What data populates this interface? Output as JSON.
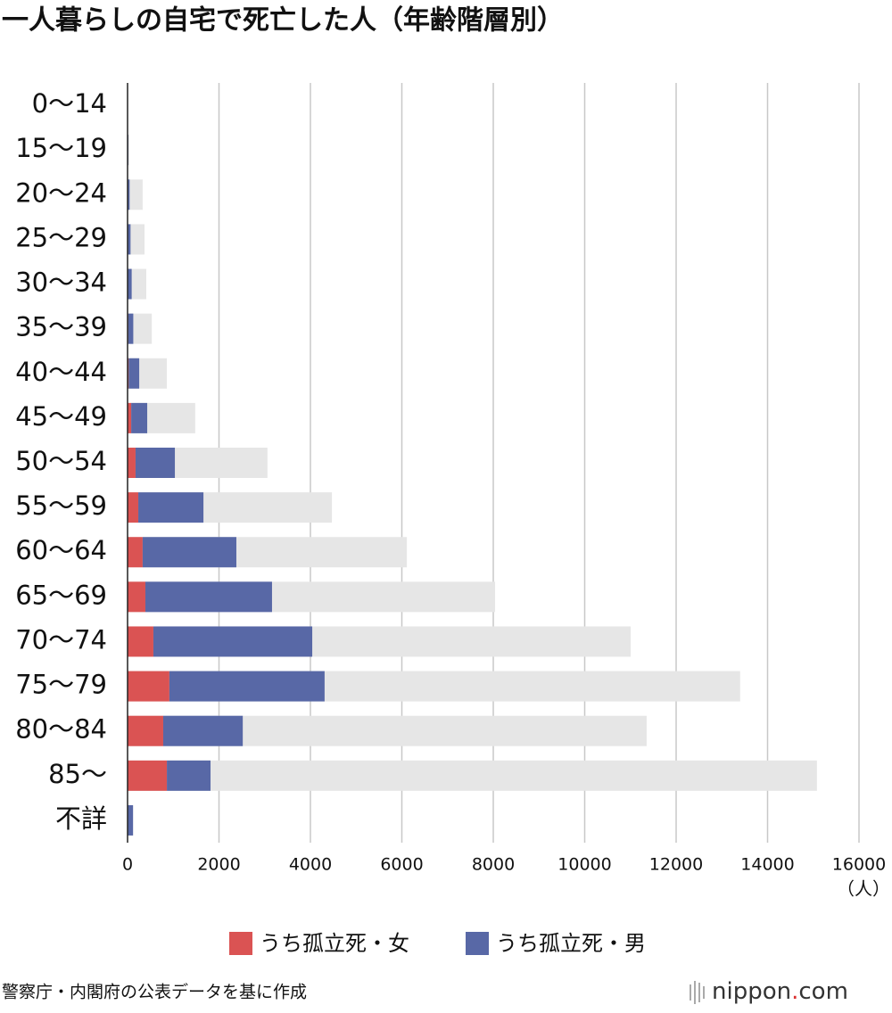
{
  "chart_data": {
    "type": "bar",
    "orientation": "horizontal",
    "title": "一人暮らしの自宅で死亡した人（年齢階層別）",
    "categories": [
      "0〜14",
      "15〜19",
      "20〜24",
      "25〜29",
      "30〜34",
      "35〜39",
      "40〜44",
      "45〜49",
      "50〜54",
      "55〜59",
      "60〜64",
      "65〜69",
      "70〜74",
      "75〜79",
      "80〜84",
      "85〜",
      "不詳"
    ],
    "series": [
      {
        "name": "うち孤立死・女",
        "color": "#da5353",
        "values": [
          0,
          5,
          5,
          5,
          10,
          15,
          25,
          80,
          175,
          235,
          330,
          390,
          565,
          915,
          780,
          860,
          0
        ]
      },
      {
        "name": "うち孤立死・男",
        "color": "#5868a6",
        "values": [
          0,
          10,
          40,
          60,
          80,
          110,
          230,
          350,
          860,
          1425,
          2050,
          2770,
          3475,
          3395,
          1740,
          955,
          120
        ]
      },
      {
        "color": "#e6e6e6",
        "values": [
          10,
          40,
          330,
          370,
          410,
          530,
          860,
          1480,
          3060,
          4470,
          6110,
          8040,
          11005,
          13400,
          11355,
          15080,
          120
        ]
      }
    ],
    "xlim": [
      0,
      16000
    ],
    "xticks": [
      0,
      2000,
      4000,
      6000,
      8000,
      10000,
      12000,
      14000,
      16000
    ],
    "x_unit": "（人）",
    "grid": true,
    "source": "警察庁・内閣府の公表データを基に作成",
    "logo": [
      "nippon",
      ".",
      "com"
    ]
  }
}
